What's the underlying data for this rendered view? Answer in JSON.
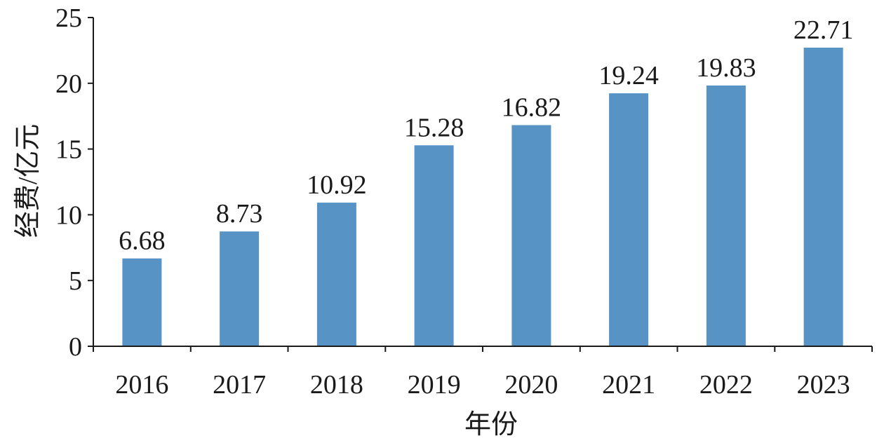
{
  "chart_data": {
    "type": "bar",
    "title": "",
    "xlabel": "年份",
    "ylabel": "经费/亿元",
    "categories": [
      "2016",
      "2017",
      "2018",
      "2019",
      "2020",
      "2021",
      "2022",
      "2023"
    ],
    "values": [
      6.68,
      8.73,
      10.92,
      15.28,
      16.82,
      19.24,
      19.83,
      22.71
    ],
    "data_labels": [
      "6.68",
      "8.73",
      "10.92",
      "15.28",
      "16.82",
      "19.24",
      "19.83",
      "22.71"
    ],
    "ylim": [
      0,
      25
    ],
    "yticks": [
      0,
      5,
      10,
      15,
      20,
      25
    ],
    "ytick_labels": [
      "0",
      "5",
      "10",
      "15",
      "20",
      "25"
    ],
    "grid": false,
    "legend": "none",
    "bar_color": "#5893c6"
  }
}
